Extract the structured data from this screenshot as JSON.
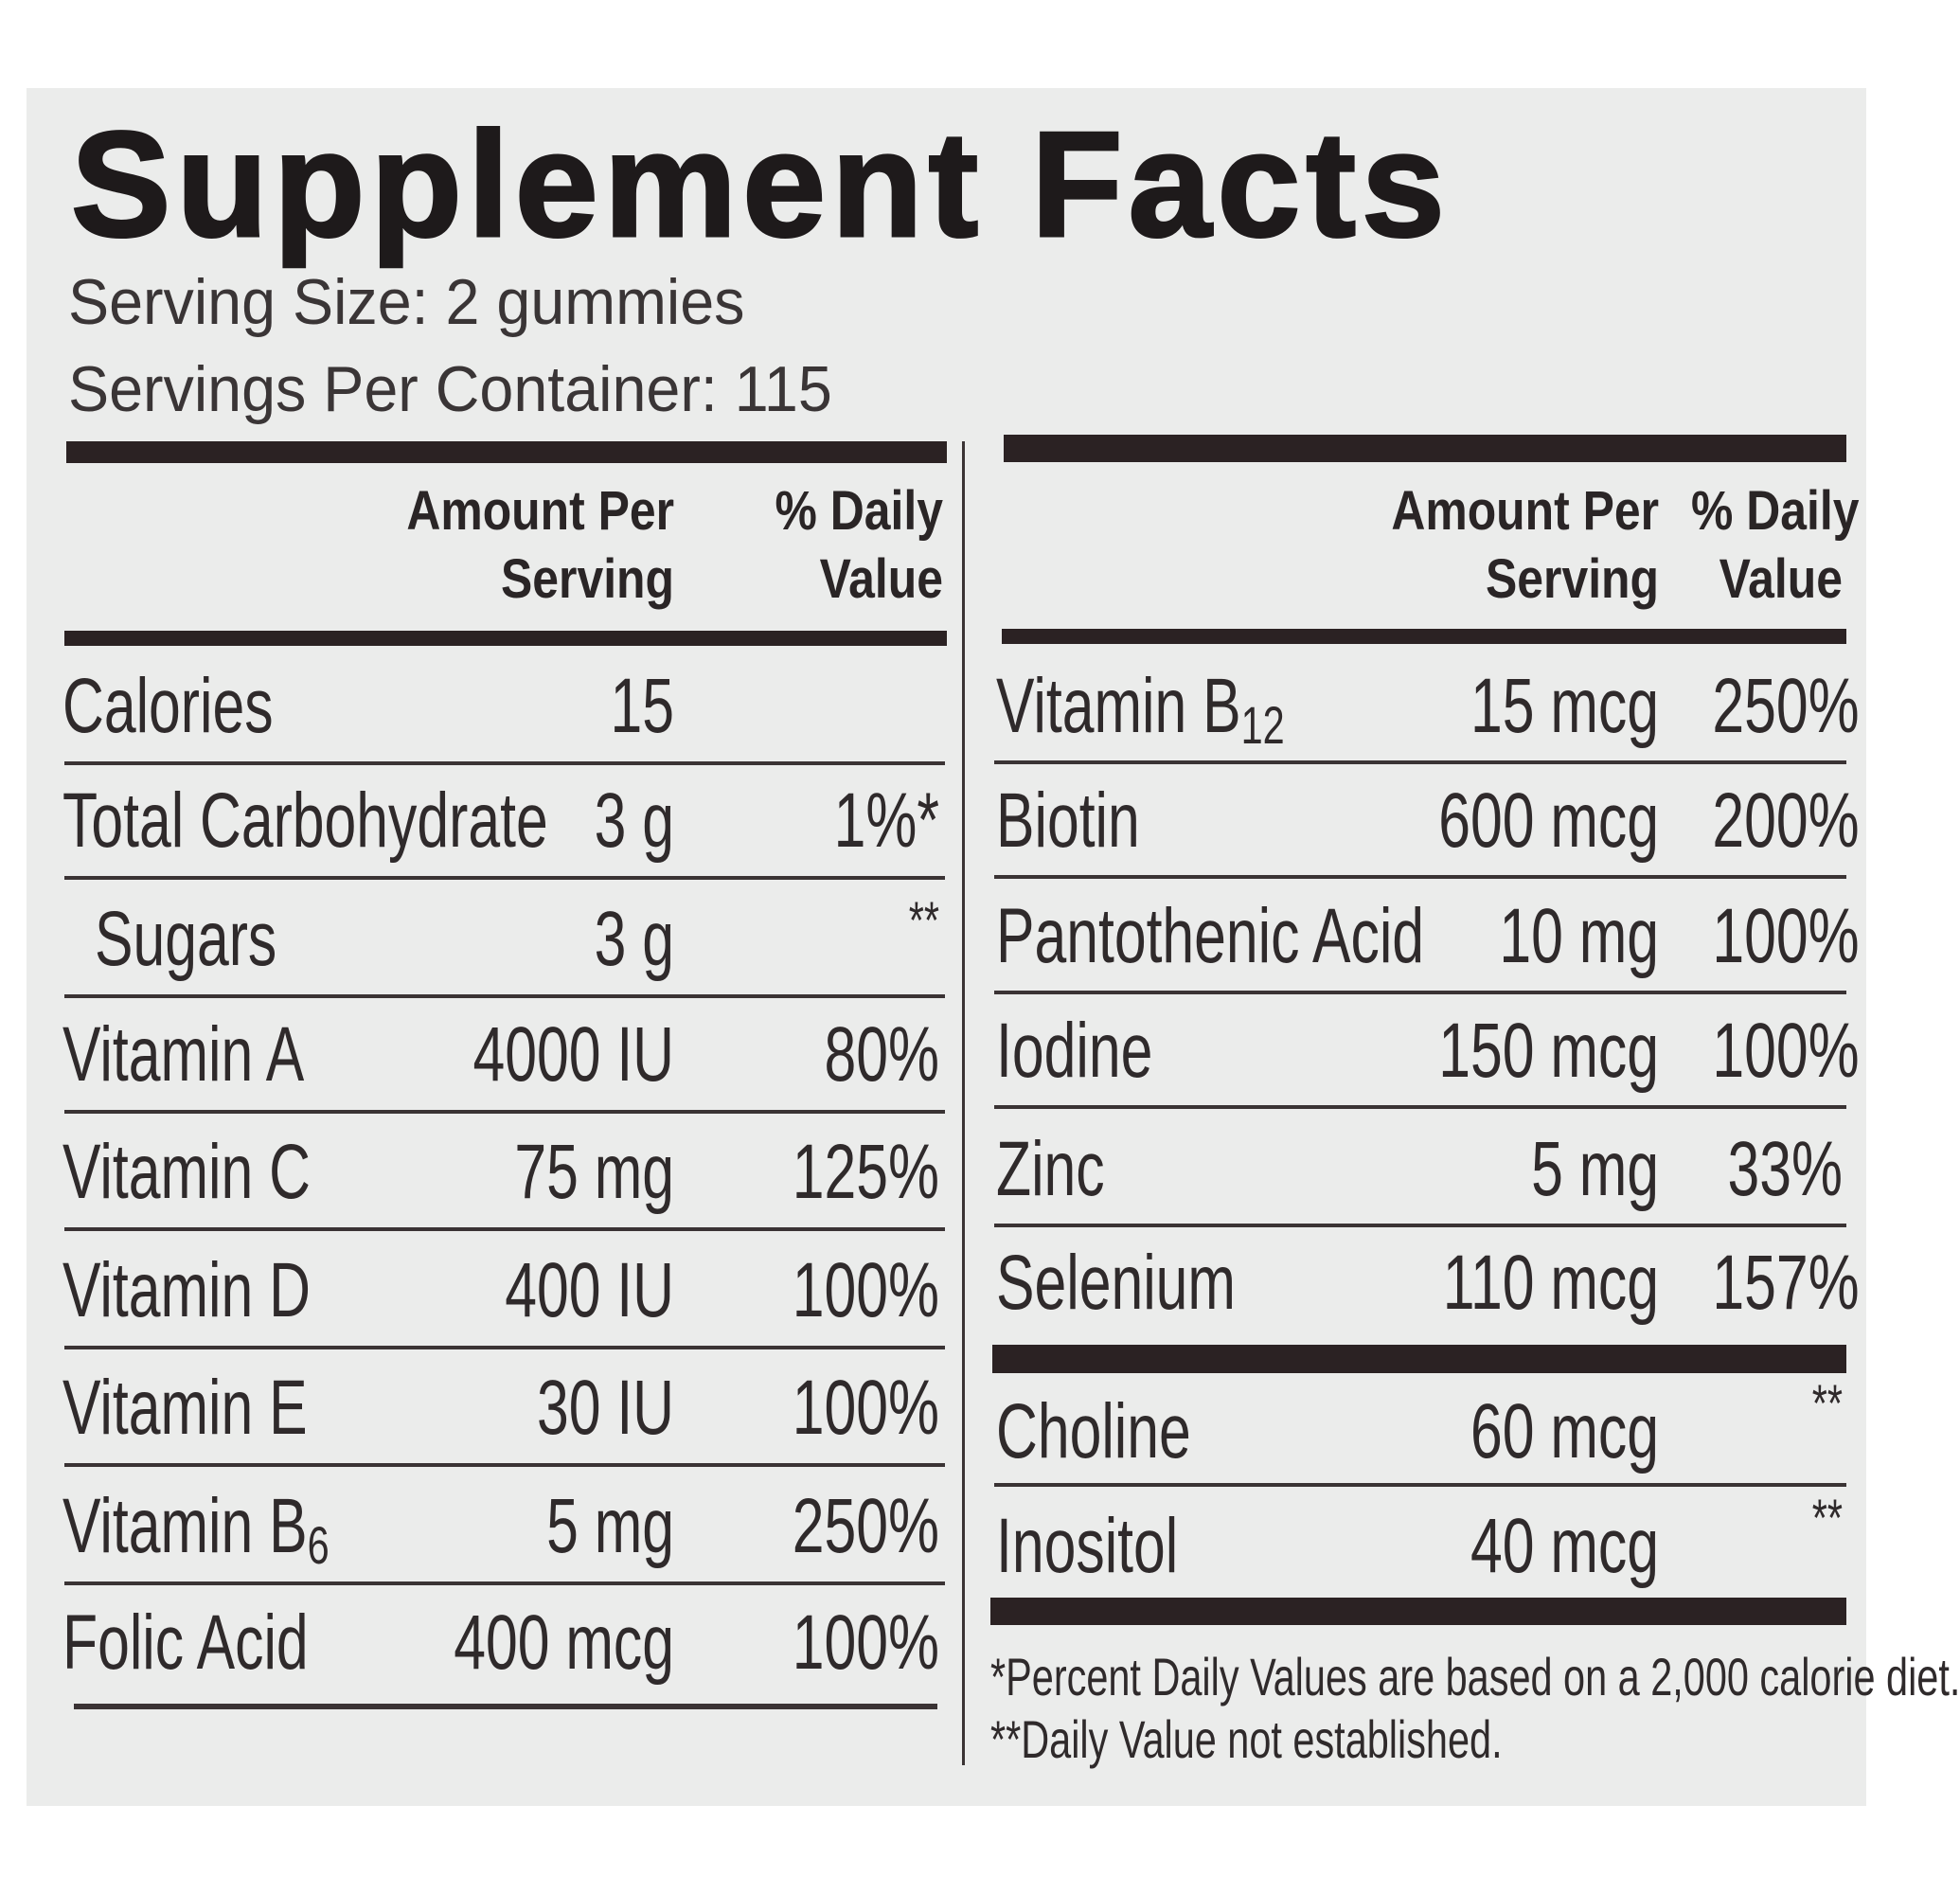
{
  "title": "Supplement Facts",
  "serving_size": "Serving Size:  2 gummies",
  "servings_per_container": "Servings Per Container: 115",
  "headers": {
    "amount_line1": "Amount Per",
    "amount_line2": "Serving",
    "dv_line1": "% Daily",
    "dv_line2": "Value"
  },
  "left_rows": [
    {
      "name": "Calories",
      "sub": "",
      "amount": "15",
      "dv": ""
    },
    {
      "name": "Total Carbohydrate",
      "sub": "",
      "amount": "3 g",
      "dv": "1%*"
    },
    {
      "name": "Sugars",
      "sub": "",
      "amount": "3 g",
      "dv": "**",
      "indent": true
    },
    {
      "name": "Vitamin A",
      "sub": "",
      "amount": "4000 IU",
      "dv": "80%"
    },
    {
      "name": "Vitamin C",
      "sub": "",
      "amount": "75 mg",
      "dv": "125%"
    },
    {
      "name": "Vitamin D",
      "sub": "",
      "amount": "400 IU",
      "dv": "100%"
    },
    {
      "name": "Vitamin E",
      "sub": "",
      "amount": "30 IU",
      "dv": "100%"
    },
    {
      "name": "Vitamin B",
      "sub": "6",
      "amount": "5 mg",
      "dv": "250%"
    },
    {
      "name": "Folic Acid",
      "sub": "",
      "amount": "400 mcg",
      "dv": "100%"
    }
  ],
  "right_rows": [
    {
      "name": "Vitamin B",
      "sub": "12",
      "amount": "15 mcg",
      "dv": "250%"
    },
    {
      "name": "Biotin",
      "sub": "",
      "amount": "600 mcg",
      "dv": "200%"
    },
    {
      "name": "Pantothenic Acid",
      "sub": "",
      "amount": "10 mg",
      "dv": "100%"
    },
    {
      "name": "Iodine",
      "sub": "",
      "amount": "150 mcg",
      "dv": "100%"
    },
    {
      "name": "Zinc",
      "sub": "",
      "amount": "5 mg",
      "dv": "33%"
    },
    {
      "name": "Selenium",
      "sub": "",
      "amount": "110 mcg",
      "dv": "157%"
    },
    {
      "name": "Choline",
      "sub": "",
      "amount": "60 mcg",
      "dv": "**"
    },
    {
      "name": "Inositol",
      "sub": "",
      "amount": "40 mcg",
      "dv": "**"
    }
  ],
  "footnotes": [
    "*Percent Daily Values are based on a 2,000 calorie diet.",
    "**Daily Value not established."
  ]
}
